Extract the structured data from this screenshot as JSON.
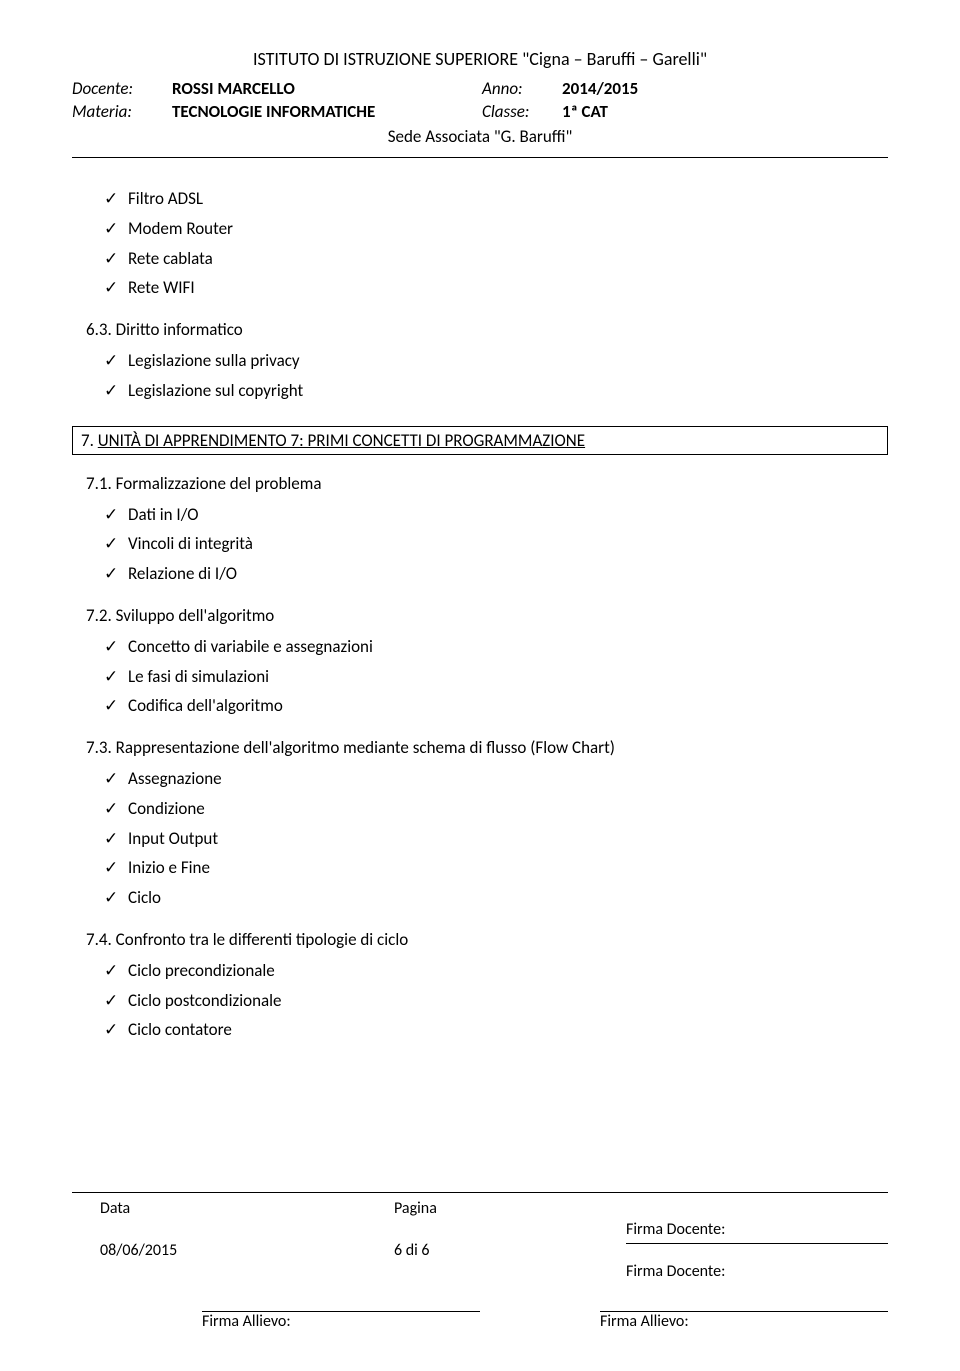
{
  "header": {
    "title": "ISTITUTO DI ISTRUZIONE SUPERIORE \"Cigna – Baruffi – Garelli\"",
    "docente_label": "Docente:",
    "docente_value": "ROSSI MARCELLO",
    "anno_label": "Anno:",
    "anno_value": "2014/2015",
    "materia_label": "Materia:",
    "materia_value": "TECNOLOGIE INFORMATICHE",
    "classe_label": "Classe:",
    "classe_value": "1ª CAT",
    "sede": "Sede Associata \"G. Baruffi\""
  },
  "intro_items": [
    "Filtro ADSL",
    "Modem Router",
    "Rete cablata",
    "Rete WIFI"
  ],
  "sec63": {
    "num": "6.3. Diritto informatico",
    "items": [
      "Legislazione sulla privacy",
      "Legislazione sul copyright"
    ]
  },
  "unit7": {
    "prefix": "7. ",
    "title": "UNITÀ DI APPRENDIMENTO 7: PRIMI CONCETTI DI PROGRAMMAZIONE"
  },
  "sec71": {
    "num": "7.1. Formalizzazione del problema",
    "items": [
      "Dati in I/O",
      "Vincoli di integrità",
      "Relazione di I/O"
    ]
  },
  "sec72": {
    "num": "7.2. Sviluppo dell'algoritmo",
    "items": [
      "Concetto di variabile e assegnazioni",
      "Le fasi di simulazioni",
      "Codifica dell'algoritmo"
    ]
  },
  "sec73": {
    "num": "7.3. Rappresentazione dell'algoritmo mediante schema di flusso (Flow Chart)",
    "items": [
      "Assegnazione",
      "Condizione",
      "Input Output",
      "Inizio e Fine",
      "Ciclo"
    ]
  },
  "sec74": {
    "num": "7.4. Confronto tra le differenti tipologie di ciclo",
    "items": [
      "Ciclo precondizionale",
      "Ciclo postcondizionale",
      "Ciclo contatore"
    ]
  },
  "footer": {
    "data_label": "Data",
    "pagina_label": "Pagina",
    "data_value": "08/06/2015",
    "pagina_value": "6 di 6",
    "firma_docente": "Firma Docente:",
    "firma_allievo": "Firma Allievo:"
  }
}
